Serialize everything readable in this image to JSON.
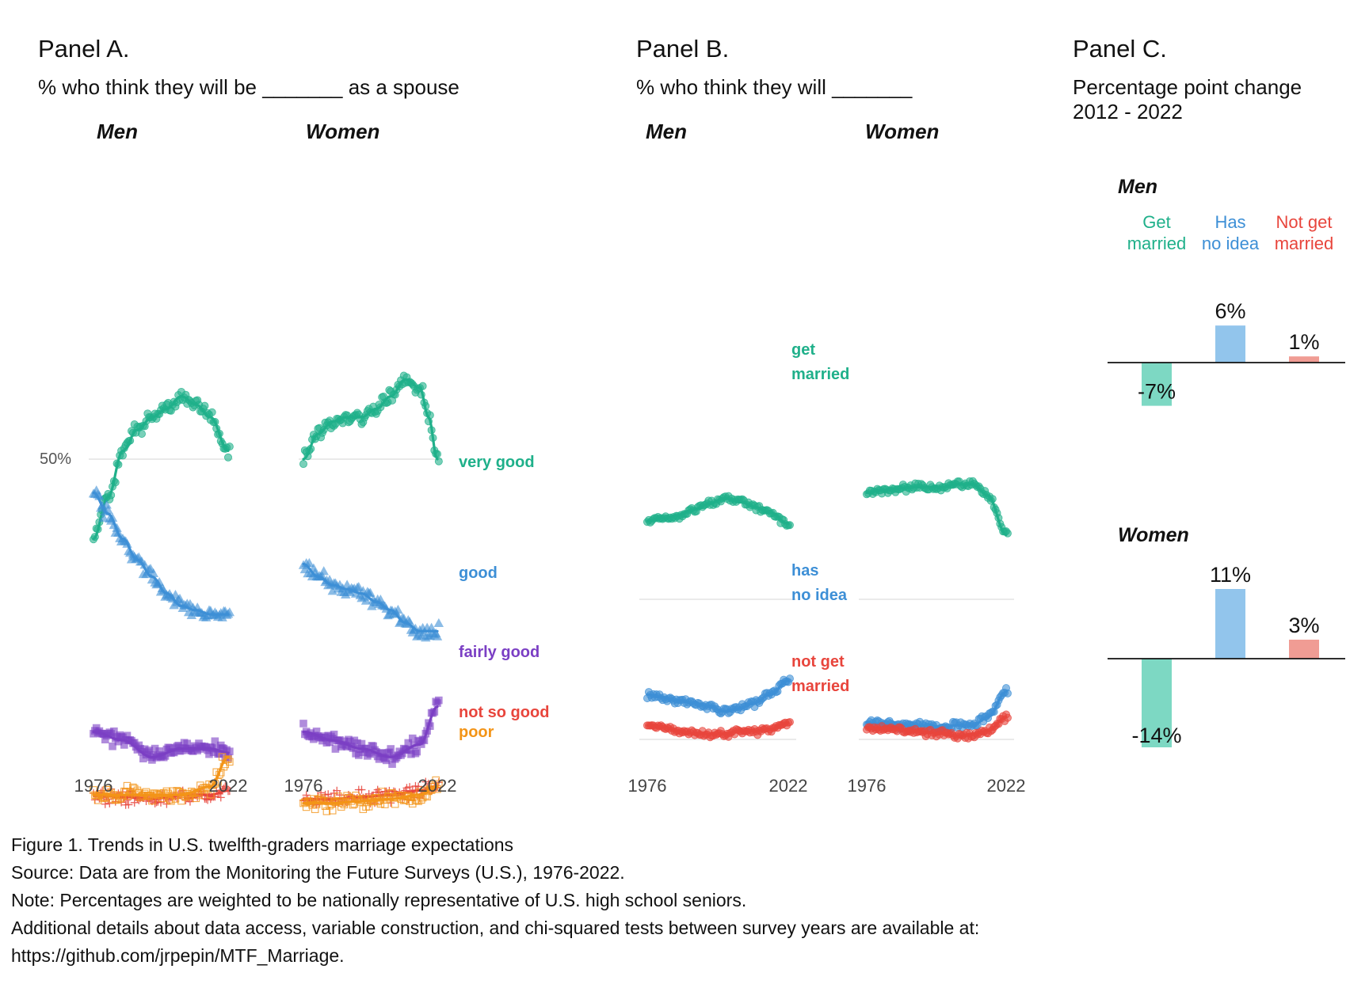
{
  "panel_a": {
    "heading": "Panel A.",
    "subtitle": "% who think they will be _______ as a spouse",
    "men_label": "Men",
    "women_label": "Women",
    "ref_label": "50%"
  },
  "panel_b": {
    "heading": "Panel B.",
    "subtitle": "% who think they will _______",
    "men_label": "Men",
    "women_label": "Women"
  },
  "panel_c": {
    "heading": "Panel C.",
    "subtitle_line1": "Percentage point change",
    "subtitle_line2": "2012 - 2022",
    "men_label": "Men",
    "women_label": "Women"
  },
  "caption": {
    "line1": "Figure 1. Trends in U.S. twelfth-graders marriage expectations",
    "line2": "Source: Data are from the Monitoring the Future Surveys (U.S.), 1976-2022.",
    "line3": "Note: Percentages are weighted to be nationally representative of U.S. high school seniors.",
    "line4": "Additional details about data access, variable construction, and chi-squared tests between survey years are available at:",
    "line5": "https://github.com/jrpepin/MTF_Marriage."
  },
  "chart_data": [
    {
      "id": "panel_a",
      "type": "scatter",
      "x_ticks": [
        "1976",
        "2022"
      ],
      "y_ref": 50,
      "ylim": [
        0,
        100
      ],
      "xlim": [
        1976,
        2022
      ],
      "facets": [
        "Men",
        "Women"
      ],
      "series": [
        {
          "key": "very_good",
          "name": "very good",
          "color": "#1fb08a",
          "shape": "circle",
          "men": {
            "anchors": [
              [
                1976,
                31
              ],
              [
                1981,
                41
              ],
              [
                1986,
                52
              ],
              [
                1991,
                57
              ],
              [
                1996,
                60
              ],
              [
                2001,
                62
              ],
              [
                2006,
                65
              ],
              [
                2011,
                63
              ],
              [
                2016,
                60
              ],
              [
                2022,
                52
              ]
            ]
          },
          "women": {
            "anchors": [
              [
                1976,
                50
              ],
              [
                1981,
                56
              ],
              [
                1986,
                59
              ],
              [
                1991,
                60
              ],
              [
                1996,
                60
              ],
              [
                2001,
                62
              ],
              [
                2006,
                65
              ],
              [
                2011,
                69
              ],
              [
                2016,
                67
              ],
              [
                2019,
                60
              ],
              [
                2022,
                50
              ]
            ]
          }
        },
        {
          "key": "good",
          "name": "good",
          "color": "#3d8fd6",
          "shape": "triangle",
          "men": {
            "anchors": [
              [
                1976,
                42
              ],
              [
                1981,
                37
              ],
              [
                1986,
                31
              ],
              [
                1991,
                26
              ],
              [
                1996,
                22
              ],
              [
                2001,
                18
              ],
              [
                2006,
                15
              ],
              [
                2011,
                14
              ],
              [
                2016,
                13
              ],
              [
                2022,
                13
              ]
            ]
          },
          "women": {
            "anchors": [
              [
                1976,
                25
              ],
              [
                1981,
                22
              ],
              [
                1986,
                20
              ],
              [
                1991,
                19
              ],
              [
                1996,
                18
              ],
              [
                2001,
                16
              ],
              [
                2006,
                14
              ],
              [
                2011,
                11
              ],
              [
                2016,
                9
              ],
              [
                2022,
                9
              ]
            ]
          }
        },
        {
          "key": "fairly_good",
          "name": "fairly good",
          "color": "#7b3fc4",
          "shape": "square",
          "men": {
            "anchors": [
              [
                1976,
                -15
              ],
              [
                1986,
                -17
              ],
              [
                1996,
                -21
              ],
              [
                2006,
                -19
              ],
              [
                2016,
                -19
              ],
              [
                2022,
                -20
              ]
            ]
          },
          "women": {
            "anchors": [
              [
                1976,
                -15
              ],
              [
                1986,
                -17
              ],
              [
                1996,
                -19
              ],
              [
                2006,
                -21
              ],
              [
                2016,
                -18
              ],
              [
                2022,
                -9
              ]
            ]
          }
        },
        {
          "key": "not_so_good",
          "name": "not so good",
          "color": "#e8453c",
          "shape": "plus",
          "men": {
            "anchors": [
              [
                1976,
                -30
              ],
              [
                1986,
                -30.5
              ],
              [
                1996,
                -31
              ],
              [
                2006,
                -30
              ],
              [
                2016,
                -30
              ],
              [
                2022,
                -29
              ]
            ]
          },
          "women": {
            "anchors": [
              [
                1976,
                -31
              ],
              [
                1986,
                -31
              ],
              [
                1996,
                -30.5
              ],
              [
                2006,
                -30
              ],
              [
                2016,
                -29
              ],
              [
                2022,
                -28
              ]
            ]
          }
        },
        {
          "key": "poor",
          "name": "poor",
          "color": "#f39417",
          "shape": "square-open",
          "men": {
            "anchors": [
              [
                1976,
                -30
              ],
              [
                1986,
                -30
              ],
              [
                1996,
                -30
              ],
              [
                2006,
                -30
              ],
              [
                2016,
                -28
              ],
              [
                2022,
                -21
              ]
            ]
          },
          "women": {
            "anchors": [
              [
                1976,
                -32
              ],
              [
                1986,
                -32
              ],
              [
                1996,
                -31.5
              ],
              [
                2006,
                -31
              ],
              [
                2016,
                -30
              ],
              [
                2022,
                -28
              ]
            ]
          }
        }
      ]
    },
    {
      "id": "panel_b",
      "type": "scatter",
      "x_ticks": [
        "1976",
        "2022"
      ],
      "xlim": [
        1976,
        2022
      ],
      "facets": [
        "Men",
        "Women"
      ],
      "series": [
        {
          "key": "get_married",
          "name": "get married",
          "name_line1": "get",
          "name_line2": "married",
          "color": "#1fb08a",
          "men": {
            "anchors": [
              [
                1976,
                78
              ],
              [
                1981,
                79
              ],
              [
                1986,
                80
              ],
              [
                1991,
                82
              ],
              [
                1996,
                84
              ],
              [
                2001,
                86
              ],
              [
                2006,
                85
              ],
              [
                2011,
                83
              ],
              [
                2016,
                81
              ],
              [
                2022,
                77
              ]
            ]
          },
          "women": {
            "anchors": [
              [
                1976,
                88
              ],
              [
                1981,
                89
              ],
              [
                1986,
                89.5
              ],
              [
                1991,
                90
              ],
              [
                1996,
                90
              ],
              [
                2001,
                90
              ],
              [
                2006,
                91
              ],
              [
                2011,
                91
              ],
              [
                2016,
                87
              ],
              [
                2022,
                73
              ]
            ]
          }
        },
        {
          "key": "no_idea",
          "name": "has no idea",
          "name_line1": "has",
          "name_line2": "no idea",
          "color": "#3d8fd6",
          "men": {
            "anchors": [
              [
                1976,
                16
              ],
              [
                1981,
                15
              ],
              [
                1986,
                14
              ],
              [
                1991,
                13
              ],
              [
                1996,
                12
              ],
              [
                2001,
                10
              ],
              [
                2006,
                11
              ],
              [
                2011,
                13
              ],
              [
                2016,
                16
              ],
              [
                2022,
                21
              ]
            ]
          },
          "women": {
            "anchors": [
              [
                1976,
                6
              ],
              [
                1981,
                5.5
              ],
              [
                1986,
                5
              ],
              [
                1991,
                5
              ],
              [
                1996,
                5
              ],
              [
                2001,
                4.5
              ],
              [
                2006,
                5
              ],
              [
                2011,
                5
              ],
              [
                2016,
                8
              ],
              [
                2022,
                17
              ]
            ]
          }
        },
        {
          "key": "not_married",
          "name": "not get married",
          "name_line1": "not get",
          "name_line2": "married",
          "color": "#e8453c",
          "men": {
            "anchors": [
              [
                1976,
                5
              ],
              [
                1981,
                4.5
              ],
              [
                1986,
                3
              ],
              [
                1991,
                2
              ],
              [
                1996,
                2
              ],
              [
                2001,
                2
              ],
              [
                2006,
                3
              ],
              [
                2011,
                3
              ],
              [
                2016,
                3.5
              ],
              [
                2022,
                6
              ]
            ]
          },
          "women": {
            "anchors": [
              [
                1976,
                4
              ],
              [
                1981,
                4
              ],
              [
                1986,
                3.5
              ],
              [
                1991,
                3
              ],
              [
                1996,
                2.5
              ],
              [
                2001,
                2
              ],
              [
                2006,
                1
              ],
              [
                2011,
                2
              ],
              [
                2016,
                3
              ],
              [
                2022,
                8
              ]
            ]
          }
        }
      ]
    },
    {
      "id": "panel_c",
      "type": "bar",
      "categories": [
        "Get married",
        "Has no idea",
        "Not get married"
      ],
      "category_lines": [
        [
          "Get",
          "married"
        ],
        [
          "Has",
          "no idea"
        ],
        [
          "Not get",
          "married"
        ]
      ],
      "category_colors": [
        "#1fb08a",
        "#3d8fd6",
        "#e8453c"
      ],
      "bar_colors": [
        "#7dd8c3",
        "#92c5ec",
        "#f09c94"
      ],
      "series": [
        {
          "name": "Men",
          "values": [
            -7,
            6,
            1
          ],
          "labels": [
            "-7%",
            "6%",
            "1%"
          ]
        },
        {
          "name": "Women",
          "values": [
            -14,
            11,
            3
          ],
          "labels": [
            "-14%",
            "11%",
            "3%"
          ]
        }
      ]
    }
  ]
}
